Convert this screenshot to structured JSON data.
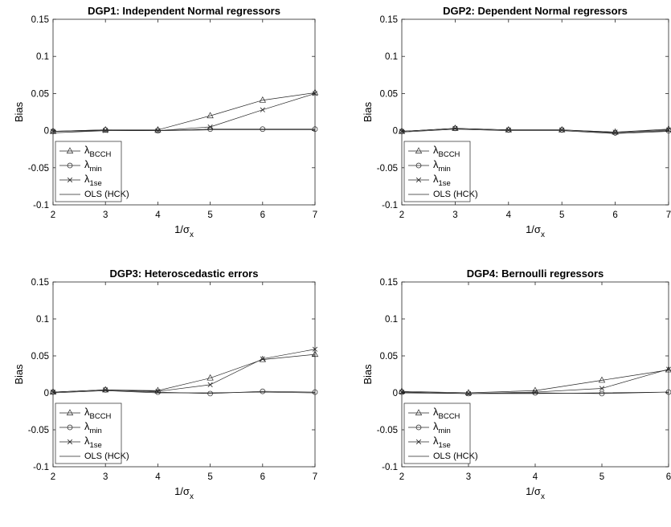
{
  "chart_data": [
    {
      "type": "line",
      "title": "DGP1: Independent Normal regressors",
      "ylabel": "Bias",
      "xlabel": "1/σ",
      "xlabel_sub": "x",
      "x": [
        2,
        3,
        4,
        5,
        6,
        7
      ],
      "xlim": [
        2,
        7
      ],
      "ylim": [
        -0.1,
        0.15
      ],
      "yticks": [
        "-0.1",
        "-0.05",
        "0",
        "0.05",
        "0.1",
        "0.15"
      ],
      "xticks": [
        "2",
        "3",
        "4",
        "5",
        "6",
        "7"
      ],
      "legend_position": "bottom-left",
      "series": [
        {
          "name": "λ",
          "sub": "BCCH",
          "marker": "triangle",
          "values": [
            -0.001,
            0.001,
            0.001,
            0.02,
            0.041,
            0.051
          ]
        },
        {
          "name": "λ",
          "sub": "min",
          "marker": "circle",
          "values": [
            -0.001,
            0.001,
            0.0,
            0.002,
            0.002,
            0.002
          ]
        },
        {
          "name": "λ",
          "sub": "1se",
          "marker": "x",
          "values": [
            -0.001,
            0.0,
            0.0,
            0.005,
            0.028,
            0.05
          ]
        },
        {
          "name": "OLS (HCK)",
          "marker": "none",
          "values": [
            -0.003,
            0.0,
            0.0,
            0.001,
            0.001,
            0.001
          ]
        }
      ]
    },
    {
      "type": "line",
      "title": "DGP2: Dependent Normal regressors",
      "ylabel": "Bias",
      "xlabel": "1/σ",
      "xlabel_sub": "x",
      "x": [
        2,
        3,
        4,
        5,
        6,
        7
      ],
      "xlim": [
        2,
        7
      ],
      "ylim": [
        -0.1,
        0.15
      ],
      "yticks": [
        "-0.1",
        "-0.05",
        "0",
        "0.05",
        "0.1",
        "0.15"
      ],
      "xticks": [
        "2",
        "3",
        "4",
        "5",
        "6",
        "7"
      ],
      "legend_position": "bottom-left",
      "series": [
        {
          "name": "λ",
          "sub": "BCCH",
          "marker": "triangle",
          "values": [
            -0.001,
            0.003,
            0.001,
            0.001,
            -0.002,
            0.002
          ]
        },
        {
          "name": "λ",
          "sub": "min",
          "marker": "circle",
          "values": [
            -0.001,
            0.003,
            0.001,
            0.001,
            -0.003,
            0.0
          ]
        },
        {
          "name": "λ",
          "sub": "1se",
          "marker": "x",
          "values": [
            -0.001,
            0.003,
            0.001,
            0.001,
            -0.002,
            0.001
          ]
        },
        {
          "name": "OLS (HCK)",
          "marker": "none",
          "values": [
            -0.002,
            0.002,
            0.0,
            0.0,
            -0.004,
            -0.001
          ]
        }
      ]
    },
    {
      "type": "line",
      "title": "DGP3: Heteroscedastic errors",
      "ylabel": "Bias",
      "xlabel": "1/σ",
      "xlabel_sub": "x",
      "x": [
        2,
        3,
        4,
        5,
        6,
        7
      ],
      "xlim": [
        2,
        7
      ],
      "ylim": [
        -0.1,
        0.15
      ],
      "yticks": [
        "-0.1",
        "-0.05",
        "0",
        "0.05",
        "0.1",
        "0.15"
      ],
      "xticks": [
        "2",
        "3",
        "4",
        "5",
        "6",
        "7"
      ],
      "legend_position": "bottom-left",
      "series": [
        {
          "name": "λ",
          "sub": "BCCH",
          "marker": "triangle",
          "values": [
            0.001,
            0.004,
            0.003,
            0.02,
            0.045,
            0.052
          ]
        },
        {
          "name": "λ",
          "sub": "min",
          "marker": "circle",
          "values": [
            0.001,
            0.004,
            0.001,
            -0.001,
            0.002,
            0.001
          ]
        },
        {
          "name": "λ",
          "sub": "1se",
          "marker": "x",
          "values": [
            0.001,
            0.004,
            0.002,
            0.011,
            0.046,
            0.059
          ]
        },
        {
          "name": "OLS (HCK)",
          "marker": "none",
          "values": [
            0.0,
            0.003,
            0.0,
            0.0,
            0.001,
            0.0
          ]
        }
      ]
    },
    {
      "type": "line",
      "title": "DGP4: Bernoulli regressors",
      "ylabel": "Bias",
      "xlabel": "1/σ",
      "xlabel_sub": "x",
      "x": [
        2,
        3,
        4,
        5,
        6
      ],
      "xlim": [
        2,
        6
      ],
      "ylim": [
        -0.1,
        0.15
      ],
      "yticks": [
        "-0.1",
        "-0.05",
        "0",
        "0.05",
        "0.1",
        "0.15"
      ],
      "xticks": [
        "2",
        "3",
        "4",
        "5",
        "6"
      ],
      "legend_position": "bottom-left",
      "series": [
        {
          "name": "λ",
          "sub": "BCCH",
          "marker": "triangle",
          "values": [
            0.002,
            0.0,
            0.003,
            0.017,
            0.031
          ]
        },
        {
          "name": "λ",
          "sub": "min",
          "marker": "circle",
          "values": [
            0.001,
            -0.001,
            0.0,
            -0.001,
            0.001
          ]
        },
        {
          "name": "λ",
          "sub": "1se",
          "marker": "x",
          "values": [
            0.001,
            -0.001,
            0.001,
            0.006,
            0.032
          ]
        },
        {
          "name": "OLS (HCK)",
          "marker": "none",
          "values": [
            0.0,
            -0.001,
            -0.001,
            0.0,
            0.001
          ]
        }
      ]
    }
  ]
}
